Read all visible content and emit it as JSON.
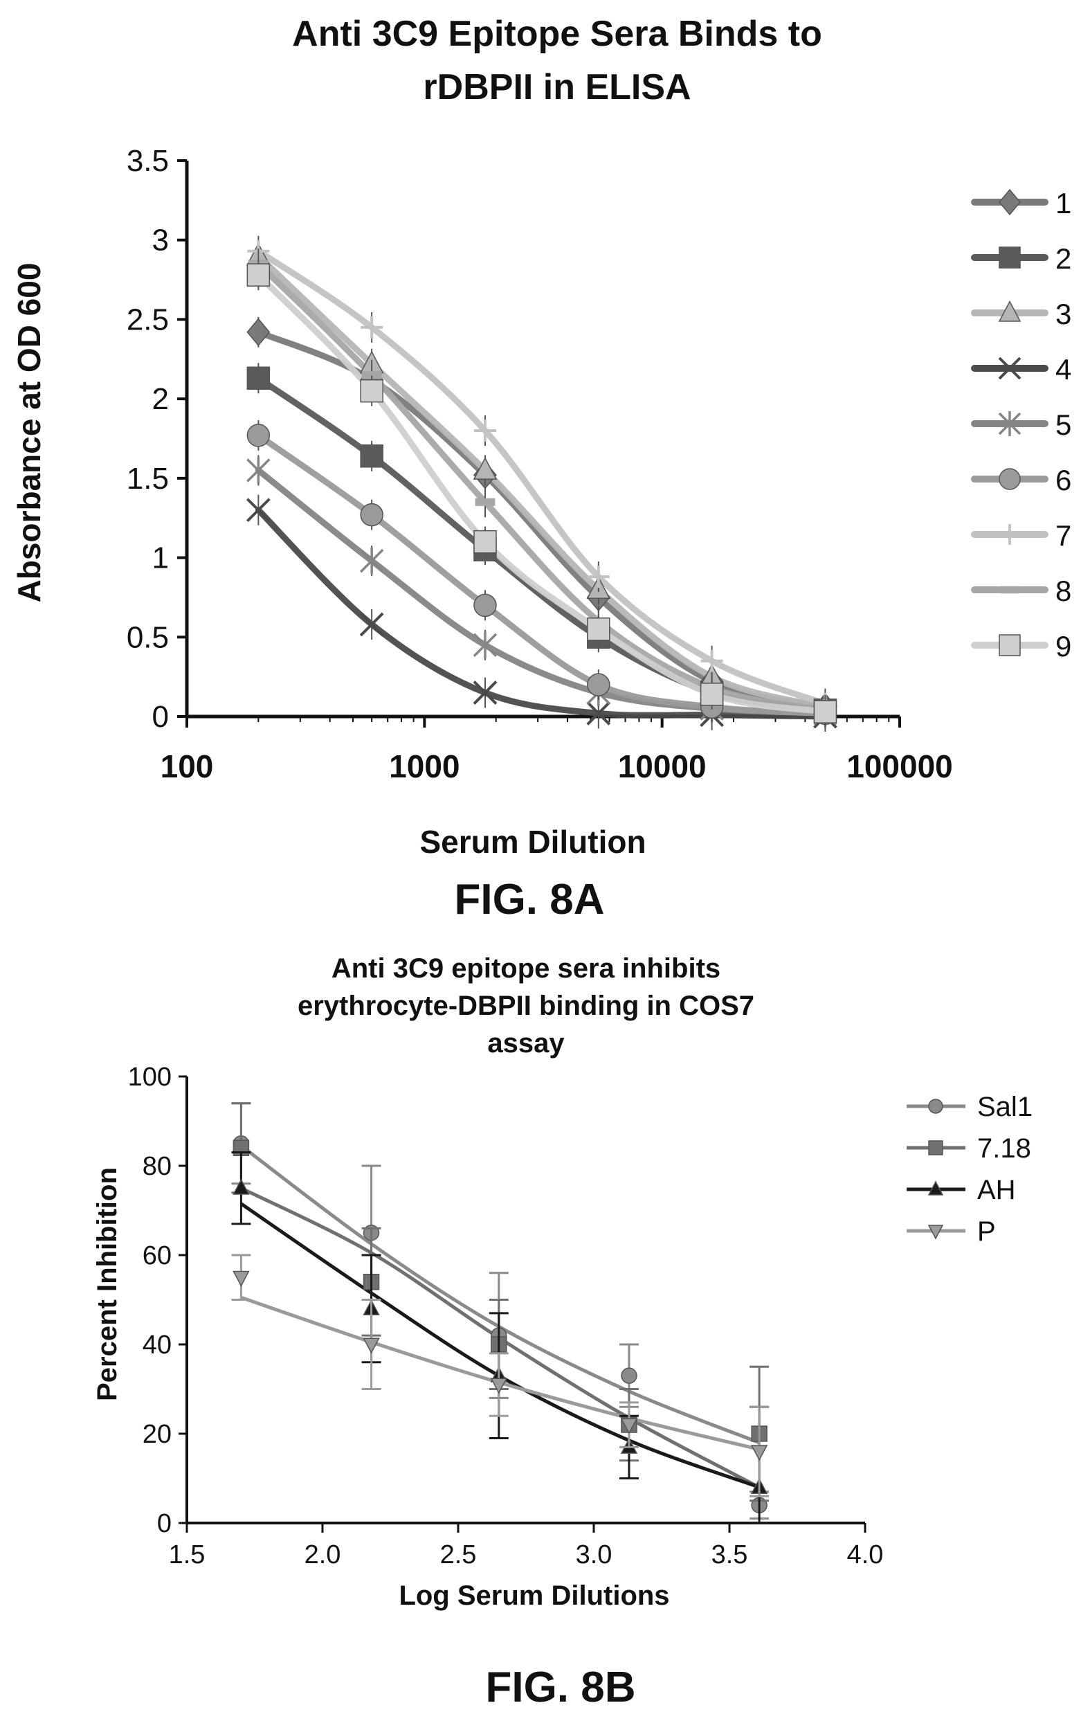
{
  "chart_data": [
    {
      "type": "line",
      "title_lines": [
        "Anti 3C9 Epitope Sera Binds to",
        "rDBPII in ELISA"
      ],
      "xlabel": "Serum Dilution",
      "ylabel": "Absorbance at OD 600",
      "figure_label": "FIG. 8A",
      "x_scale": "log",
      "xlim": [
        100,
        100000
      ],
      "ylim": [
        0,
        3.5
      ],
      "xticks": [
        "100",
        "1000",
        "10000",
        "100000"
      ],
      "yticks": [
        "0",
        "0.5",
        "1",
        "1.5",
        "2",
        "2.5",
        "3",
        "3.5"
      ],
      "x": [
        200,
        600,
        1800,
        5400,
        16200,
        48600
      ],
      "legend_position": "right",
      "series": [
        {
          "name": "1",
          "marker": "diamond",
          "color": "#7a7a7a",
          "values": [
            2.42,
            2.12,
            1.52,
            0.75,
            0.22,
            0.06
          ]
        },
        {
          "name": "2",
          "marker": "square",
          "color": "#5a5a5a",
          "values": [
            2.13,
            1.64,
            1.05,
            0.5,
            0.15,
            0.04
          ]
        },
        {
          "name": "3",
          "marker": "triangle",
          "color": "#b5b5b5",
          "values": [
            2.9,
            2.22,
            1.55,
            0.8,
            0.25,
            0.06
          ]
        },
        {
          "name": "4",
          "marker": "x",
          "color": "#4a4a4a",
          "values": [
            1.3,
            0.58,
            0.15,
            0.02,
            0.01,
            0.0
          ]
        },
        {
          "name": "5",
          "marker": "star",
          "color": "#858585",
          "values": [
            1.55,
            0.98,
            0.45,
            0.15,
            0.05,
            0.02
          ]
        },
        {
          "name": "6",
          "marker": "circle",
          "color": "#9a9a9a",
          "values": [
            1.77,
            1.27,
            0.7,
            0.2,
            0.06,
            0.02
          ]
        },
        {
          "name": "7",
          "marker": "plus",
          "color": "#c2c2c2",
          "values": [
            2.93,
            2.45,
            1.8,
            0.88,
            0.35,
            0.08
          ]
        },
        {
          "name": "8",
          "marker": "bar",
          "color": "#a6a6a6",
          "values": [
            2.85,
            2.15,
            1.35,
            0.6,
            0.18,
            0.04
          ]
        },
        {
          "name": "9",
          "marker": "square",
          "color": "#cfcfcf",
          "values": [
            2.78,
            2.05,
            1.1,
            0.55,
            0.14,
            0.03
          ]
        }
      ]
    },
    {
      "type": "line",
      "title_lines": [
        "Anti 3C9 epitope sera inhibits",
        "erythrocyte-DBPII binding in COS7",
        "assay"
      ],
      "xlabel": "Log Serum Dilutions",
      "ylabel": "Percent  Inhibition",
      "figure_label": "FIG. 8B",
      "xlim": [
        1.5,
        4.0
      ],
      "ylim": [
        0,
        100
      ],
      "xticks": [
        "1.5",
        "2.0",
        "2.5",
        "3.0",
        "3.5",
        "4.0"
      ],
      "yticks": [
        "0",
        "20",
        "40",
        "60",
        "80",
        "100"
      ],
      "x": [
        1.7,
        2.18,
        2.65,
        3.13,
        3.61
      ],
      "legend_position": "top-right",
      "series": [
        {
          "name": "Sal1",
          "marker": "circle",
          "color": "#8a8a8a",
          "values": [
            85,
            65,
            42,
            33,
            4
          ],
          "error": [
            9,
            15,
            14,
            7,
            3
          ],
          "fit": [
            84.5,
            62.5,
            44,
            29.5,
            18
          ]
        },
        {
          "name": "7.18",
          "marker": "square",
          "color": "#707070",
          "values": [
            84,
            54,
            40,
            22,
            20
          ],
          "error": [
            10,
            12,
            10,
            8,
            15
          ],
          "fit": [
            75,
            60.5,
            41.5,
            23.5,
            8
          ]
        },
        {
          "name": "AH",
          "marker": "triangle",
          "color": "#1a1a1a",
          "values": [
            75,
            48,
            33,
            17,
            8
          ],
          "error": [
            8,
            12,
            14,
            7,
            18
          ],
          "fit": [
            71.5,
            51.5,
            33,
            18.5,
            8
          ]
        },
        {
          "name": "P",
          "marker": "triangle-down",
          "color": "#9a9a9a",
          "values": [
            55,
            40,
            31,
            22,
            16
          ],
          "error": [
            5,
            10,
            7,
            5,
            10
          ],
          "fit": [
            50.5,
            40.5,
            31.5,
            23.5,
            16.5
          ]
        }
      ]
    }
  ]
}
